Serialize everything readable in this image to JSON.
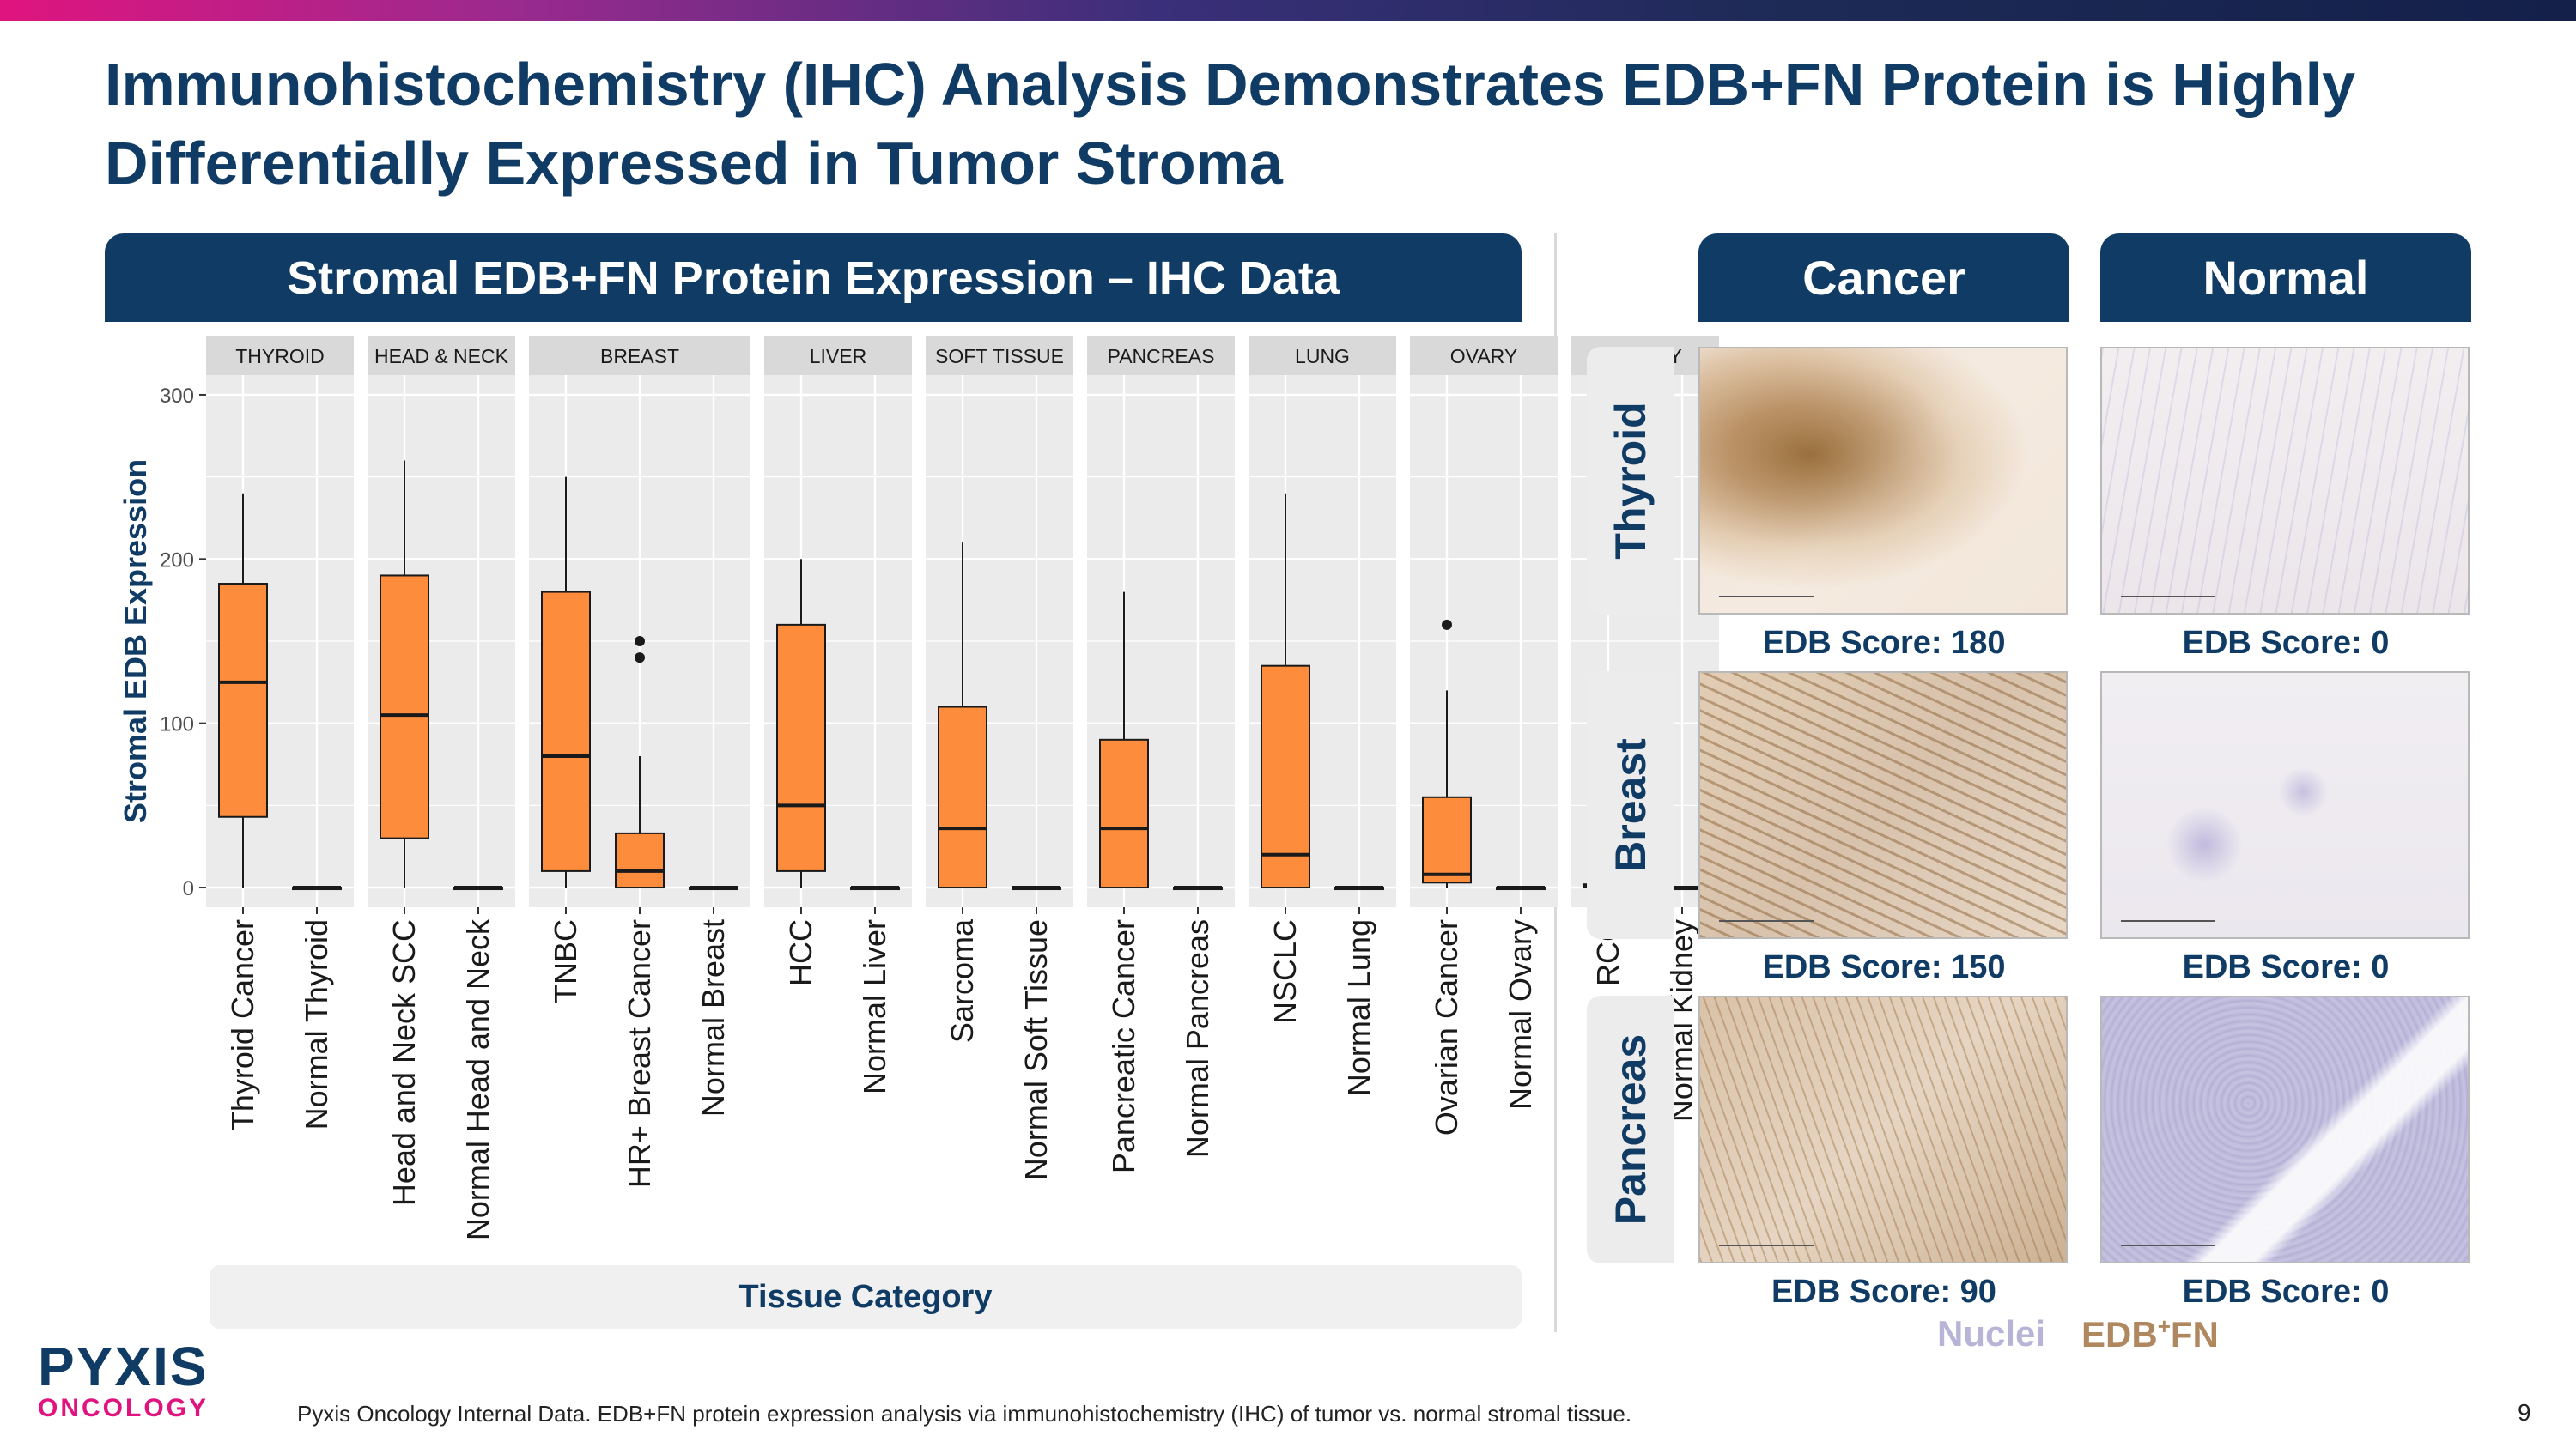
{
  "slide": {
    "title": "Immunohistochemistry (IHC) Analysis Demonstrates EDB+FN Protein is Highly Differentially Expressed in Tumor Stroma",
    "chart_header": "Stromal EDB+FN Protein Expression – IHC Data",
    "footnote": "Pyxis Oncology Internal Data. EDB+FN protein expression analysis via immunohistochemistry (IHC) of tumor vs. normal stromal tissue.",
    "page_number": "9",
    "logo": {
      "top": "PYXIS",
      "bottom": "ONCOLOGY"
    }
  },
  "chart_data": {
    "type": "box",
    "ylabel": "Stromal EDB Expression",
    "xlabel": "Tissue Category",
    "ylim": [
      -12,
      312
    ],
    "yticks": [
      0,
      100,
      200,
      300
    ],
    "facets": [
      {
        "name": "THYROID",
        "boxes": [
          {
            "label": "Thyroid Cancer",
            "min": 0,
            "q1": 43,
            "median": 125,
            "q3": 185,
            "max": 240,
            "outliers": []
          },
          {
            "label": "Normal Thyroid",
            "min": 0,
            "q1": 0,
            "median": 0,
            "q3": 0,
            "max": 0,
            "outliers": []
          }
        ]
      },
      {
        "name": "HEAD & NECK",
        "boxes": [
          {
            "label": "Head and Neck SCC",
            "min": 0,
            "q1": 30,
            "median": 105,
            "q3": 190,
            "max": 260,
            "outliers": []
          },
          {
            "label": "Normal Head and Neck",
            "min": 0,
            "q1": 0,
            "median": 0,
            "q3": 0,
            "max": 0,
            "outliers": []
          }
        ]
      },
      {
        "name": "BREAST",
        "boxes": [
          {
            "label": "TNBC",
            "min": 0,
            "q1": 10,
            "median": 80,
            "q3": 180,
            "max": 250,
            "outliers": []
          },
          {
            "label": "HR+ Breast Cancer",
            "min": 0,
            "q1": 0,
            "median": 10,
            "q3": 33,
            "max": 80,
            "outliers": [
              140,
              150
            ]
          },
          {
            "label": "Normal Breast",
            "min": 0,
            "q1": 0,
            "median": 0,
            "q3": 0,
            "max": 0,
            "outliers": []
          }
        ]
      },
      {
        "name": "LIVER",
        "boxes": [
          {
            "label": "HCC",
            "min": 0,
            "q1": 10,
            "median": 50,
            "q3": 160,
            "max": 200,
            "outliers": []
          },
          {
            "label": "Normal Liver",
            "min": 0,
            "q1": 0,
            "median": 0,
            "q3": 0,
            "max": 0,
            "outliers": []
          }
        ]
      },
      {
        "name": "SOFT TISSUE",
        "boxes": [
          {
            "label": "Sarcoma",
            "min": 0,
            "q1": 0,
            "median": 36,
            "q3": 110,
            "max": 210,
            "outliers": []
          },
          {
            "label": "Normal Soft Tissue",
            "min": 0,
            "q1": 0,
            "median": 0,
            "q3": 0,
            "max": 0,
            "outliers": []
          }
        ]
      },
      {
        "name": "PANCREAS",
        "boxes": [
          {
            "label": "Pancreatic Cancer",
            "min": 0,
            "q1": 0,
            "median": 36,
            "q3": 90,
            "max": 180,
            "outliers": []
          },
          {
            "label": "Normal Pancreas",
            "min": 0,
            "q1": 0,
            "median": 0,
            "q3": 0,
            "max": 0,
            "outliers": []
          }
        ]
      },
      {
        "name": "LUNG",
        "boxes": [
          {
            "label": "NSCLC",
            "min": 0,
            "q1": 0,
            "median": 20,
            "q3": 135,
            "max": 240,
            "outliers": []
          },
          {
            "label": "Normal Lung",
            "min": 0,
            "q1": 0,
            "median": 0,
            "q3": 0,
            "max": 0,
            "outliers": []
          }
        ]
      },
      {
        "name": "OVARY",
        "boxes": [
          {
            "label": "Ovarian Cancer",
            "min": 0,
            "q1": 3,
            "median": 8,
            "q3": 55,
            "max": 120,
            "outliers": [
              160
            ]
          },
          {
            "label": "Normal Ovary",
            "min": 0,
            "q1": 0,
            "median": 0,
            "q3": 0,
            "max": 0,
            "outliers": []
          }
        ]
      },
      {
        "name": "KIDNEY",
        "boxes": [
          {
            "label": "RCC",
            "min": 0,
            "q1": 0,
            "median": 1,
            "q3": 2,
            "max": 2,
            "outliers": [
              6,
              30,
              35,
              45
            ]
          },
          {
            "label": "Normal Kidney",
            "min": 0,
            "q1": 0,
            "median": 0,
            "q3": 0,
            "max": 0,
            "outliers": []
          }
        ]
      }
    ],
    "colors": {
      "box_fill": "#fd8d3c",
      "panel_bg": "#ebebeb",
      "strip_bg": "#d9d9d9",
      "grid": "#ffffff",
      "accent": "#0f3b64"
    }
  },
  "images": {
    "columns": [
      "Cancer",
      "Normal"
    ],
    "rows": [
      {
        "tissue": "Thyroid",
        "cancer_score": "EDB Score: 180",
        "normal_score": "EDB Score: 0"
      },
      {
        "tissue": "Breast",
        "cancer_score": "EDB Score: 150",
        "normal_score": "EDB Score: 0"
      },
      {
        "tissue": "Pancreas",
        "cancer_score": "EDB Score: 90",
        "normal_score": "EDB Score: 0"
      }
    ],
    "legend": {
      "nuclei": "Nuclei",
      "edb_base": "EDB",
      "edb_sup": "+",
      "edb_end": "FN"
    }
  }
}
